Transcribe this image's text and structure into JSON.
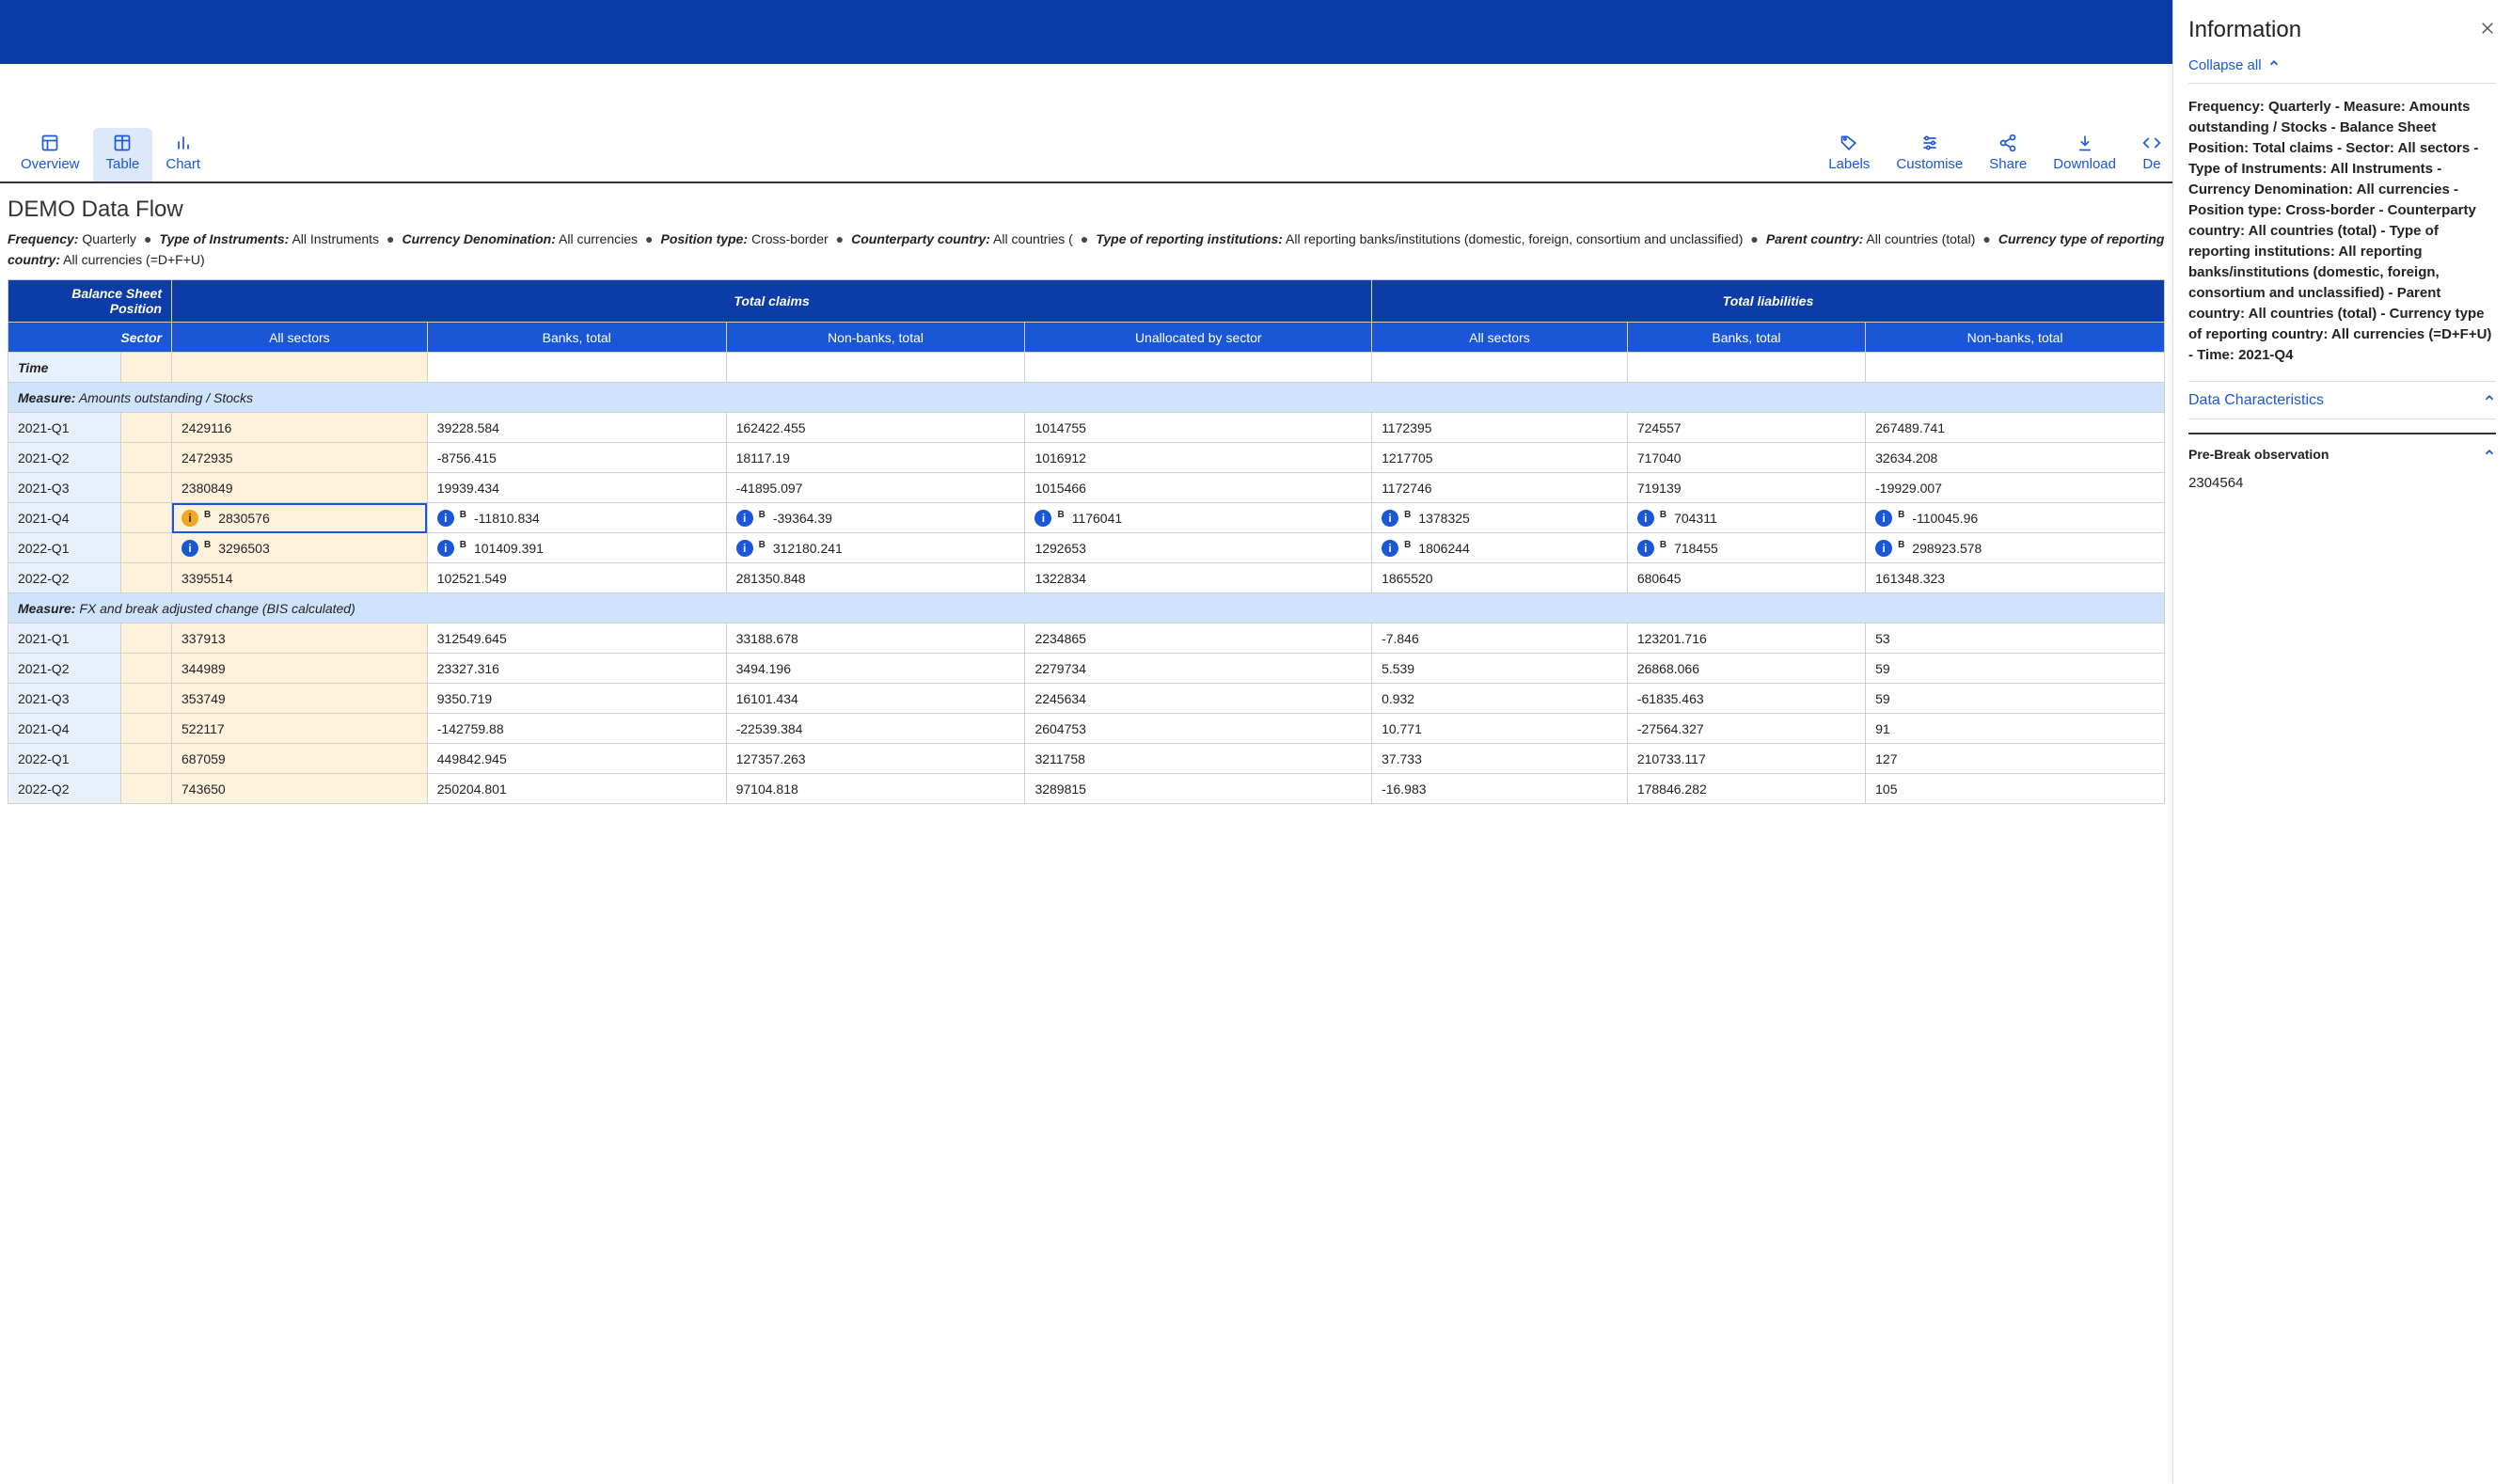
{
  "toolbar": {
    "overview": "Overview",
    "table": "Table",
    "chart": "Chart",
    "labels": "Labels",
    "customise": "Customise",
    "share": "Share",
    "download": "Download",
    "developer": "De"
  },
  "page_title": "DEMO Data Flow",
  "filters": [
    {
      "label": "Frequency:",
      "value": "Quarterly"
    },
    {
      "label": "Type of Instruments:",
      "value": "All Instruments"
    },
    {
      "label": "Currency Denomination:",
      "value": "All currencies"
    },
    {
      "label": "Position type:",
      "value": "Cross-border"
    },
    {
      "label": "Counterparty country:",
      "value": "All countries ("
    },
    {
      "label": "Type of reporting institutions:",
      "value": "All reporting banks/institutions (domestic, foreign, consortium and unclassified)"
    },
    {
      "label": "Parent country:",
      "value": "All countries (total)"
    },
    {
      "label": "Currency type of reporting country:",
      "value": "All currencies (=D+F+U)"
    }
  ],
  "table": {
    "corner1": "Balance Sheet Position",
    "corner2": "Sector",
    "time_label": "Time",
    "group_headers": [
      "Total claims",
      "Total liabilities"
    ],
    "col_headers": [
      "All sectors",
      "Banks, total",
      "Non-banks, total",
      "Unallocated by sector",
      "All sectors",
      "Banks, total",
      "Non-banks, total"
    ],
    "measures": [
      {
        "label_prefix": "Measure:",
        "label": "Amounts outstanding / Stocks",
        "rows": [
          {
            "period": "2021-Q1",
            "cells": [
              {
                "v": "2429116"
              },
              {
                "v": "39228.584"
              },
              {
                "v": "162422.455"
              },
              {
                "v": "1014755"
              },
              {
                "v": "1172395"
              },
              {
                "v": "724557"
              },
              {
                "v": "267489.741"
              }
            ]
          },
          {
            "period": "2021-Q2",
            "cells": [
              {
                "v": "2472935"
              },
              {
                "v": "-8756.415"
              },
              {
                "v": "18117.19"
              },
              {
                "v": "1016912"
              },
              {
                "v": "1217705"
              },
              {
                "v": "717040"
              },
              {
                "v": "32634.208"
              }
            ]
          },
          {
            "period": "2021-Q3",
            "cells": [
              {
                "v": "2380849"
              },
              {
                "v": "19939.434"
              },
              {
                "v": "-41895.097"
              },
              {
                "v": "1015466"
              },
              {
                "v": "1172746"
              },
              {
                "v": "719139"
              },
              {
                "v": "-19929.007"
              }
            ]
          },
          {
            "period": "2021-Q4",
            "selected": true,
            "cells": [
              {
                "v": "2830576",
                "info": "orange",
                "b": true
              },
              {
                "v": "-11810.834",
                "info": "blue",
                "b": true
              },
              {
                "v": "-39364.39",
                "info": "blue",
                "b": true
              },
              {
                "v": "1176041",
                "info": "blue",
                "b": true
              },
              {
                "v": "1378325",
                "info": "blue",
                "b": true
              },
              {
                "v": "704311",
                "info": "blue",
                "b": true
              },
              {
                "v": "-110045.96",
                "info": "blue",
                "b": true
              }
            ]
          },
          {
            "period": "2022-Q1",
            "cells": [
              {
                "v": "3296503",
                "info": "blue",
                "b": true
              },
              {
                "v": "101409.391",
                "info": "blue",
                "b": true
              },
              {
                "v": "312180.241",
                "info": "blue",
                "b": true
              },
              {
                "v": "1292653"
              },
              {
                "v": "1806244",
                "info": "blue",
                "b": true
              },
              {
                "v": "718455",
                "info": "blue",
                "b": true
              },
              {
                "v": "298923.578",
                "info": "blue",
                "b": true
              }
            ]
          },
          {
            "period": "2022-Q2",
            "cells": [
              {
                "v": "3395514"
              },
              {
                "v": "102521.549"
              },
              {
                "v": "281350.848"
              },
              {
                "v": "1322834"
              },
              {
                "v": "1865520"
              },
              {
                "v": "680645"
              },
              {
                "v": "161348.323"
              }
            ]
          }
        ]
      },
      {
        "label_prefix": "Measure:",
        "label": "FX and break adjusted change (BIS calculated)",
        "rows": [
          {
            "period": "2021-Q1",
            "cells": [
              {
                "v": "337913"
              },
              {
                "v": "312549.645"
              },
              {
                "v": "33188.678"
              },
              {
                "v": "2234865"
              },
              {
                "v": "-7.846"
              },
              {
                "v": "123201.716"
              },
              {
                "v": "53"
              }
            ]
          },
          {
            "period": "2021-Q2",
            "cells": [
              {
                "v": "344989"
              },
              {
                "v": "23327.316"
              },
              {
                "v": "3494.196"
              },
              {
                "v": "2279734"
              },
              {
                "v": "5.539"
              },
              {
                "v": "26868.066"
              },
              {
                "v": "59"
              }
            ]
          },
          {
            "period": "2021-Q3",
            "cells": [
              {
                "v": "353749"
              },
              {
                "v": "9350.719"
              },
              {
                "v": "16101.434"
              },
              {
                "v": "2245634"
              },
              {
                "v": "0.932"
              },
              {
                "v": "-61835.463"
              },
              {
                "v": "59"
              }
            ]
          },
          {
            "period": "2021-Q4",
            "cells": [
              {
                "v": "522117"
              },
              {
                "v": "-142759.88"
              },
              {
                "v": "-22539.384"
              },
              {
                "v": "2604753"
              },
              {
                "v": "10.771"
              },
              {
                "v": "-27564.327"
              },
              {
                "v": "91"
              }
            ]
          },
          {
            "period": "2022-Q1",
            "cells": [
              {
                "v": "687059"
              },
              {
                "v": "449842.945"
              },
              {
                "v": "127357.263"
              },
              {
                "v": "3211758"
              },
              {
                "v": "37.733"
              },
              {
                "v": "210733.117"
              },
              {
                "v": "127"
              }
            ]
          },
          {
            "period": "2022-Q2",
            "cells": [
              {
                "v": "743650"
              },
              {
                "v": "250204.801"
              },
              {
                "v": "97104.818"
              },
              {
                "v": "3289815"
              },
              {
                "v": "-16.983"
              },
              {
                "v": "178846.282"
              },
              {
                "v": "105"
              }
            ]
          }
        ]
      }
    ]
  },
  "sidebar": {
    "title": "Information",
    "collapse_all": "Collapse all",
    "description": "Frequency: Quarterly - Measure: Amounts outstanding / Stocks - Balance Sheet Position: Total claims - Sector: All sectors - Type of Instruments: All Instruments - Currency Denomination: All currencies - Position type: Cross-border - Counterparty country: All countries (total) - Type of reporting institutions: All reporting banks/institutions (domestic, foreign, consortium and unclassified) - Parent country: All countries (total) - Currency type of reporting country: All currencies (=D+F+U) - Time: 2021-Q4",
    "section1": "Data Characteristics",
    "sub1": "Pre-Break observation",
    "sub1_value": "2304564"
  }
}
